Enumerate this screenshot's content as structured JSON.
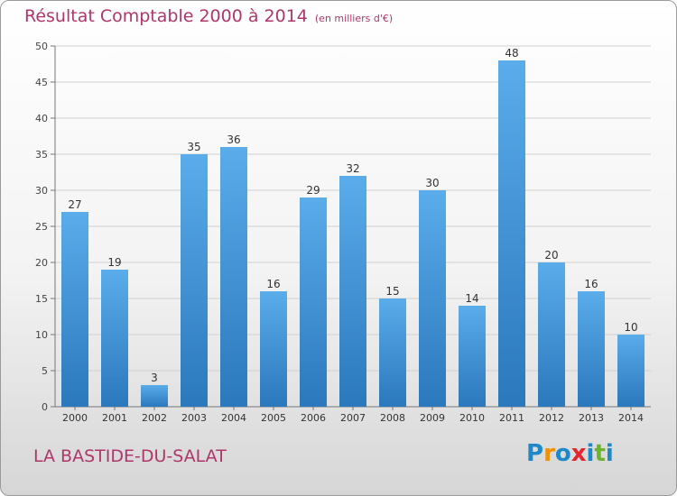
{
  "header": {
    "title": "Résultat Comptable 2000 à 2014",
    "subtitle": "(en milliers d'€)"
  },
  "footer": {
    "place": "LA BASTIDE-DU-SALAT"
  },
  "logo": {
    "text": "Proxiti",
    "letters": [
      {
        "char": "P",
        "color": "#1e88c8"
      },
      {
        "char": "r",
        "color": "#f29100"
      },
      {
        "char": "o",
        "color": "#1e88c8"
      },
      {
        "char": "x",
        "color": "#e3262d"
      },
      {
        "char": "i",
        "color": "#1e88c8"
      },
      {
        "char": "t",
        "color": "#6cb42c"
      },
      {
        "char": "i",
        "color": "#1e88c8"
      }
    ]
  },
  "colors": {
    "accent_text": "#b0366a",
    "bar_top": "#5aacea",
    "bar_bottom": "#2b78bd",
    "grid": "#d0d0d0"
  },
  "chart_data": {
    "type": "bar",
    "categories": [
      "2000",
      "2001",
      "2002",
      "2003",
      "2004",
      "2005",
      "2006",
      "2007",
      "2008",
      "2009",
      "2010",
      "2011",
      "2012",
      "2013",
      "2014"
    ],
    "values": [
      27,
      19,
      3,
      35,
      36,
      16,
      29,
      32,
      15,
      30,
      14,
      48,
      20,
      16,
      10
    ],
    "ylim": [
      0,
      50
    ],
    "yticks": [
      0,
      5,
      10,
      15,
      20,
      25,
      30,
      35,
      40,
      45,
      50
    ],
    "grid": true,
    "data_labels": true
  }
}
